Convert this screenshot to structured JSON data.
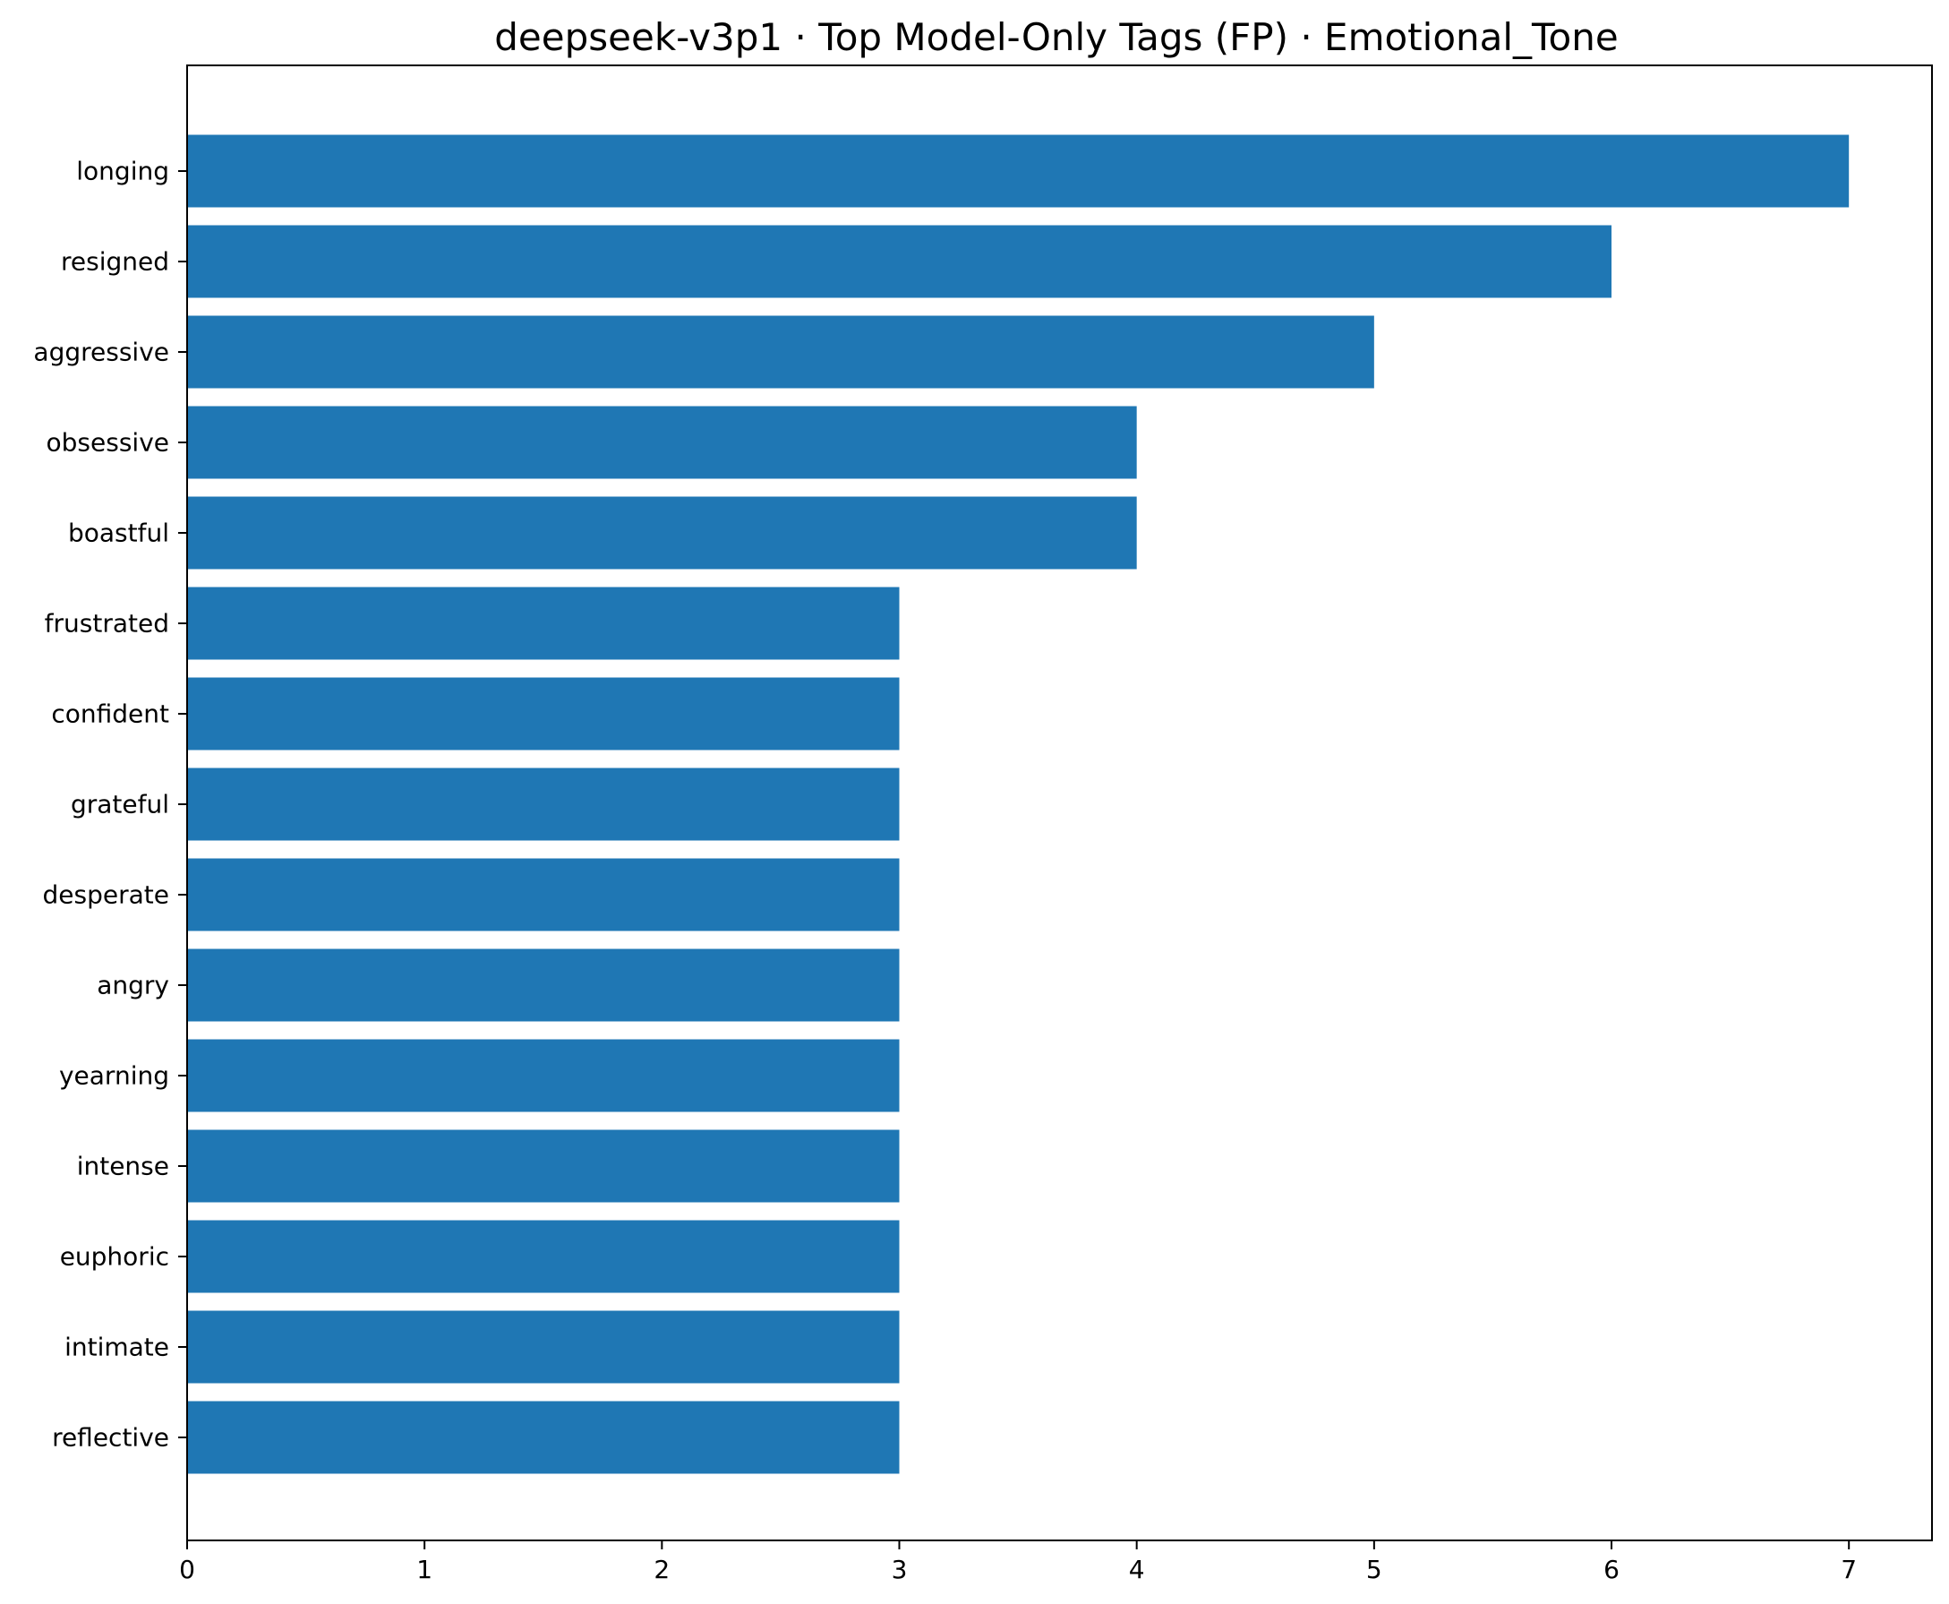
{
  "chart_data": {
    "type": "bar",
    "orientation": "horizontal",
    "title": "deepseek-v3p1 · Top Model-Only Tags (FP) · Emotional_Tone",
    "xlabel": "",
    "ylabel": "",
    "categories": [
      "longing",
      "resigned",
      "aggressive",
      "obsessive",
      "boastful",
      "frustrated",
      "confident",
      "grateful",
      "desperate",
      "angry",
      "yearning",
      "intense",
      "euphoric",
      "intimate",
      "reflective"
    ],
    "values": [
      7,
      6,
      5,
      4,
      4,
      3,
      3,
      3,
      3,
      3,
      3,
      3,
      3,
      3,
      3
    ],
    "xlim": [
      0,
      7.35
    ],
    "xticks": [
      0,
      1,
      2,
      3,
      4,
      5,
      6,
      7
    ],
    "grid": false,
    "legend": "none",
    "bar_color": "#1f77b4"
  }
}
